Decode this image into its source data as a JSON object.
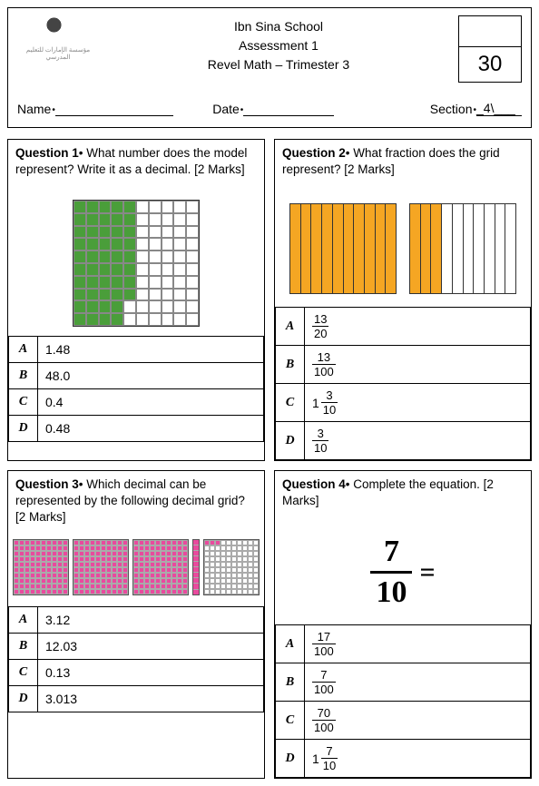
{
  "header": {
    "school": "Ibn Sina School",
    "assessment": "Assessment 1",
    "subject": "Revel Math – Trimester 3",
    "total_marks": "30",
    "name_label": "Name",
    "date_label": "Date",
    "section_label": "Section",
    "section_value": "_4\\___",
    "logo_subtext": "مؤسسة الإمارات للتعليم المدرسي"
  },
  "q1": {
    "label": "Question 1",
    "text": "What number does the model represent? Write it as a decimal. [2 Marks]",
    "marks": 2,
    "model": {
      "type": "hundred-grid",
      "filled": 48,
      "fill_color": "#4a9e3a"
    },
    "answers": {
      "A": "1.48",
      "B": "48.0",
      "C": "0.4",
      "D": "0.48"
    }
  },
  "q2": {
    "label": "Question 2",
    "text": "What fraction does the grid represent? [2 Marks]",
    "marks": 2,
    "model": {
      "type": "two-tenth-bars",
      "bar1_filled": 10,
      "bar2_filled": 3,
      "fill_color": "#f5a623"
    },
    "answers": {
      "A": {
        "type": "frac",
        "n": "13",
        "d": "20"
      },
      "B": {
        "type": "frac",
        "n": "13",
        "d": "100"
      },
      "C": {
        "type": "mixed",
        "w": "1",
        "n": "3",
        "d": "10"
      },
      "D": {
        "type": "frac",
        "n": "3",
        "d": "10"
      }
    }
  },
  "q3": {
    "label": "Question 3",
    "text": "Which decimal can be represented by the following decimal grid? [2 Marks]",
    "marks": 2,
    "model": {
      "type": "three-hundred-blocks",
      "full_blocks": 3,
      "extra_strip_filled": 1,
      "partial_block_filled": 3,
      "fill_color": "#e94a9e"
    },
    "answers": {
      "A": "3.12",
      "B": "12.03",
      "C": "0.13",
      "D": "3.013"
    }
  },
  "q4": {
    "label": "Question 4",
    "text": "Complete the equation. [2 Marks]",
    "marks": 2,
    "equation": {
      "n": "7",
      "d": "10"
    },
    "answers": {
      "A": {
        "type": "frac",
        "n": "17",
        "d": "100"
      },
      "B": {
        "type": "frac",
        "n": "7",
        "d": "100"
      },
      "C": {
        "type": "frac",
        "n": "70",
        "d": "100"
      },
      "D": {
        "type": "mixed",
        "w": "1",
        "n": "7",
        "d": "10"
      }
    }
  },
  "colors": {
    "border": "#000000",
    "bg": "#ffffff"
  }
}
